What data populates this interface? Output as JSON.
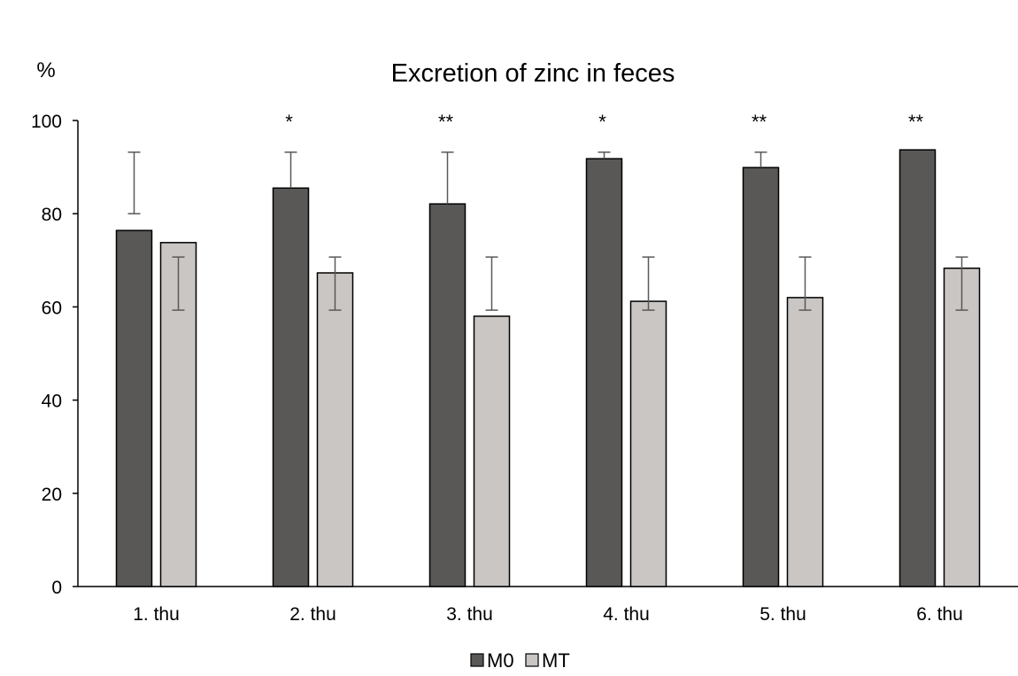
{
  "chart_data": {
    "type": "bar",
    "title": "Excretion of zinc in feces",
    "ylabel": "%",
    "xlabel": "",
    "ylim": [
      0,
      100
    ],
    "yticks": [
      "0",
      "20",
      "40",
      "60",
      "80",
      "100"
    ],
    "grid": false,
    "legend_position": "bottom",
    "categories": [
      "1. thu",
      "2. thu",
      "3. thu",
      "4. thu",
      "5. thu",
      "6. thu"
    ],
    "significance": [
      "",
      "*",
      "**",
      "*",
      "**",
      "**"
    ],
    "series": [
      {
        "name": "M0",
        "color": "#595856",
        "values": [
          76.4,
          85.5,
          82.1,
          91.8,
          89.9,
          93.7
        ],
        "error_low": [
          80.0,
          null,
          null,
          null,
          null,
          null
        ],
        "error_high": [
          93.2,
          93.2,
          93.2,
          93.2,
          93.2,
          null
        ]
      },
      {
        "name": "MT",
        "color": "#cac6c4",
        "values": [
          73.8,
          67.3,
          58.0,
          61.2,
          62.0,
          68.3
        ],
        "error_low": [
          59.3,
          59.3,
          59.3,
          59.3,
          59.3,
          59.3
        ],
        "error_high": [
          70.7,
          70.7,
          70.7,
          70.7,
          70.7,
          70.7
        ]
      }
    ]
  }
}
